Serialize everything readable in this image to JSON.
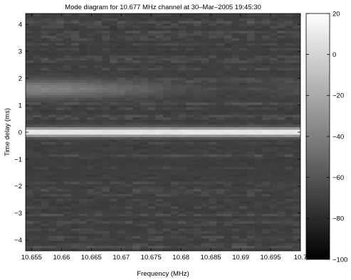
{
  "chart_data": {
    "type": "heatmap",
    "title": "Mode diagram for 10.677 MHz channel at 30–Mar–2005 19:45:30",
    "xlabel": "Frequency (MHz)",
    "ylabel": "Time delay (ms)",
    "xlim": [
      10.654,
      10.7
    ],
    "ylim": [
      -4.4,
      4.4
    ],
    "x_ticks": [
      10.655,
      10.66,
      10.665,
      10.67,
      10.675,
      10.68,
      10.685,
      10.69,
      10.695,
      10.7
    ],
    "x_tick_labels": [
      "10.655",
      "10.66",
      "10.665",
      "10.67",
      "10.675",
      "10.68",
      "10.685",
      "10.69",
      "10.695",
      "10.7"
    ],
    "y_ticks": [
      -4,
      -3,
      -2,
      -1,
      0,
      1,
      2,
      3,
      4
    ],
    "y_tick_labels": [
      "−4",
      "−3",
      "−2",
      "−1",
      "0",
      "1",
      "2",
      "3",
      "4"
    ],
    "colormap": "gray",
    "colorbar": {
      "range": [
        -100,
        20
      ],
      "ticks": [
        20,
        0,
        -20,
        -40,
        -60,
        -80,
        -100
      ],
      "tick_labels": [
        "20",
        "0",
        "−20",
        "−40",
        "−60",
        "−80",
        "−100"
      ]
    },
    "features": [
      {
        "delay_ms": 0.0,
        "level_db": 15,
        "width_ms": 0.16
      },
      {
        "delay_ms": 1.6,
        "level_db": -38,
        "width_ms": 0.35
      }
    ],
    "background_level_db": -72,
    "grid": false,
    "legend": "none"
  }
}
